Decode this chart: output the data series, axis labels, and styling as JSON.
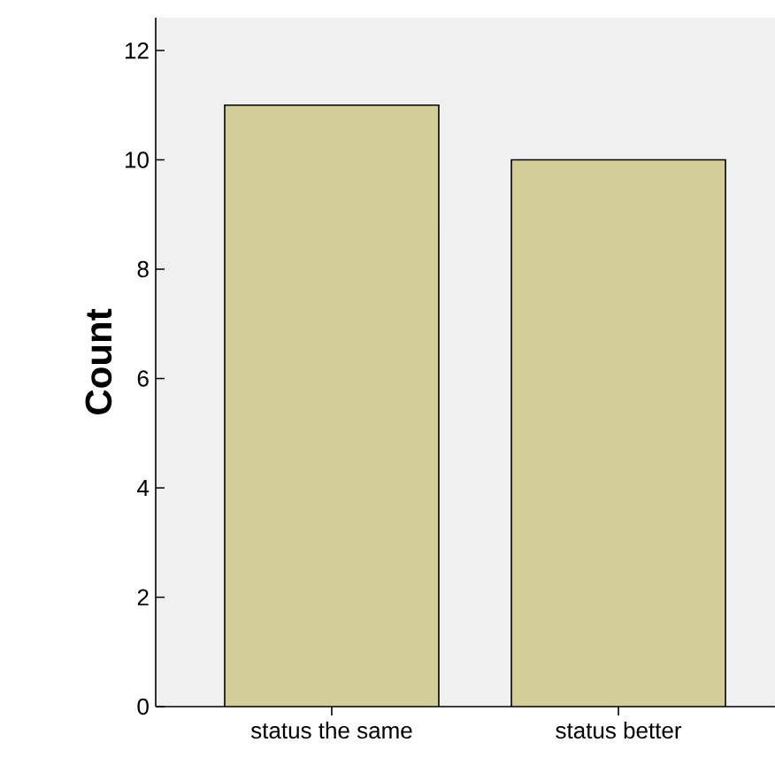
{
  "chart_data": {
    "type": "bar",
    "ylabel": "Count",
    "categories": [
      "status the same",
      "status better"
    ],
    "values": [
      11,
      10
    ],
    "color": "#d3ce98",
    "ylim": [
      0,
      12.6
    ],
    "yticks": [
      0,
      2,
      4,
      6,
      8,
      10,
      12
    ],
    "grid": false
  }
}
